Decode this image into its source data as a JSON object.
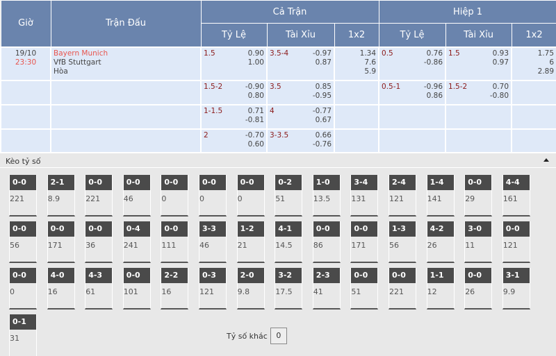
{
  "header": {
    "gio": "Giờ",
    "tran_dau": "Trận Đấu",
    "ca_tran": "Cả Trận",
    "hiep1": "Hiệp 1",
    "ty_le": "Tỷ Lệ",
    "tai_xiu": "Tài Xỉu",
    "x12": "1x2"
  },
  "match": {
    "date": "19/10",
    "time": "23:30",
    "home": "Bayern Munich",
    "away": "VfB Stuttgart",
    "draw": "Hòa"
  },
  "rows": [
    {
      "ft_hdp": "1.5",
      "ft_hdp_o": [
        "0.90",
        "1.00"
      ],
      "ft_ou": "3.5-4",
      "ft_ou_o": [
        "-0.97",
        "0.87"
      ],
      "ft_1x2": [
        "1.34",
        "7.6",
        "5.9"
      ],
      "h1_hdp": "0.5",
      "h1_hdp_o": [
        "0.76",
        "-0.86"
      ],
      "h1_ou": "1.5",
      "h1_ou_o": [
        "0.93",
        "0.97"
      ],
      "h1_1x2": [
        "1.75",
        "6",
        "2.89"
      ]
    },
    {
      "ft_hdp": "1.5-2",
      "ft_hdp_o": [
        "-0.90",
        "0.80"
      ],
      "ft_ou": "3.5",
      "ft_ou_o": [
        "0.85",
        "-0.95"
      ],
      "ft_1x2": [],
      "h1_hdp": "0.5-1",
      "h1_hdp_o": [
        "-0.96",
        "0.86"
      ],
      "h1_ou": "1.5-2",
      "h1_ou_o": [
        "0.70",
        "-0.80"
      ],
      "h1_1x2": []
    },
    {
      "ft_hdp": "1-1.5",
      "ft_hdp_o": [
        "0.71",
        "-0.81"
      ],
      "ft_ou": "4",
      "ft_ou_o": [
        "-0.77",
        "0.67"
      ],
      "ft_1x2": [],
      "h1_hdp": "",
      "h1_hdp_o": [],
      "h1_ou": "",
      "h1_ou_o": [],
      "h1_1x2": []
    },
    {
      "ft_hdp": "2",
      "ft_hdp_o": [
        "-0.70",
        "0.60"
      ],
      "ft_ou": "3-3.5",
      "ft_ou_o": [
        "0.66",
        "-0.76"
      ],
      "ft_1x2": [],
      "h1_hdp": "",
      "h1_hdp_o": [],
      "h1_ou": "",
      "h1_ou_o": [],
      "h1_1x2": []
    }
  ],
  "scores": {
    "title": "Kèo tỷ số",
    "other_label": "Tỷ số khác",
    "other_value": "0",
    "grid": [
      [
        [
          "0-0",
          "221"
        ],
        [
          "2-1",
          "8.9"
        ],
        [
          "0-0",
          "221"
        ],
        [
          "0-0",
          "46"
        ],
        [
          "0-0",
          "0"
        ],
        [
          "0-0",
          "0"
        ],
        [
          "0-0",
          "0"
        ],
        [
          "0-2",
          "51"
        ],
        [
          "1-0",
          "13.5"
        ],
        [
          "3-4",
          "131"
        ],
        [
          "2-4",
          "121"
        ],
        [
          "1-4",
          "141"
        ],
        [
          "0-0",
          "29"
        ],
        [
          "4-4",
          "161"
        ]
      ],
      [
        [
          "0-0",
          "56"
        ],
        [
          "0-0",
          "171"
        ],
        [
          "0-0",
          "36"
        ],
        [
          "0-4",
          "241"
        ],
        [
          "0-0",
          "111"
        ],
        [
          "3-3",
          "46"
        ],
        [
          "1-2",
          "21"
        ],
        [
          "4-1",
          "14.5"
        ],
        [
          "0-0",
          "86"
        ],
        [
          "0-0",
          "171"
        ],
        [
          "1-3",
          "56"
        ],
        [
          "4-2",
          "26"
        ],
        [
          "3-0",
          "11"
        ],
        [
          "0-0",
          "121"
        ]
      ],
      [
        [
          "0-0",
          "0"
        ],
        [
          "4-0",
          "16"
        ],
        [
          "4-3",
          "61"
        ],
        [
          "0-0",
          "101"
        ],
        [
          "2-2",
          "16"
        ],
        [
          "0-3",
          "121"
        ],
        [
          "2-0",
          "9.8"
        ],
        [
          "3-2",
          "17.5"
        ],
        [
          "2-3",
          "41"
        ],
        [
          "0-0",
          "51"
        ],
        [
          "0-0",
          "221"
        ],
        [
          "1-1",
          "12"
        ],
        [
          "0-0",
          "26"
        ],
        [
          "3-1",
          "9.9"
        ]
      ],
      [
        [
          "0-1",
          "31"
        ]
      ]
    ]
  }
}
